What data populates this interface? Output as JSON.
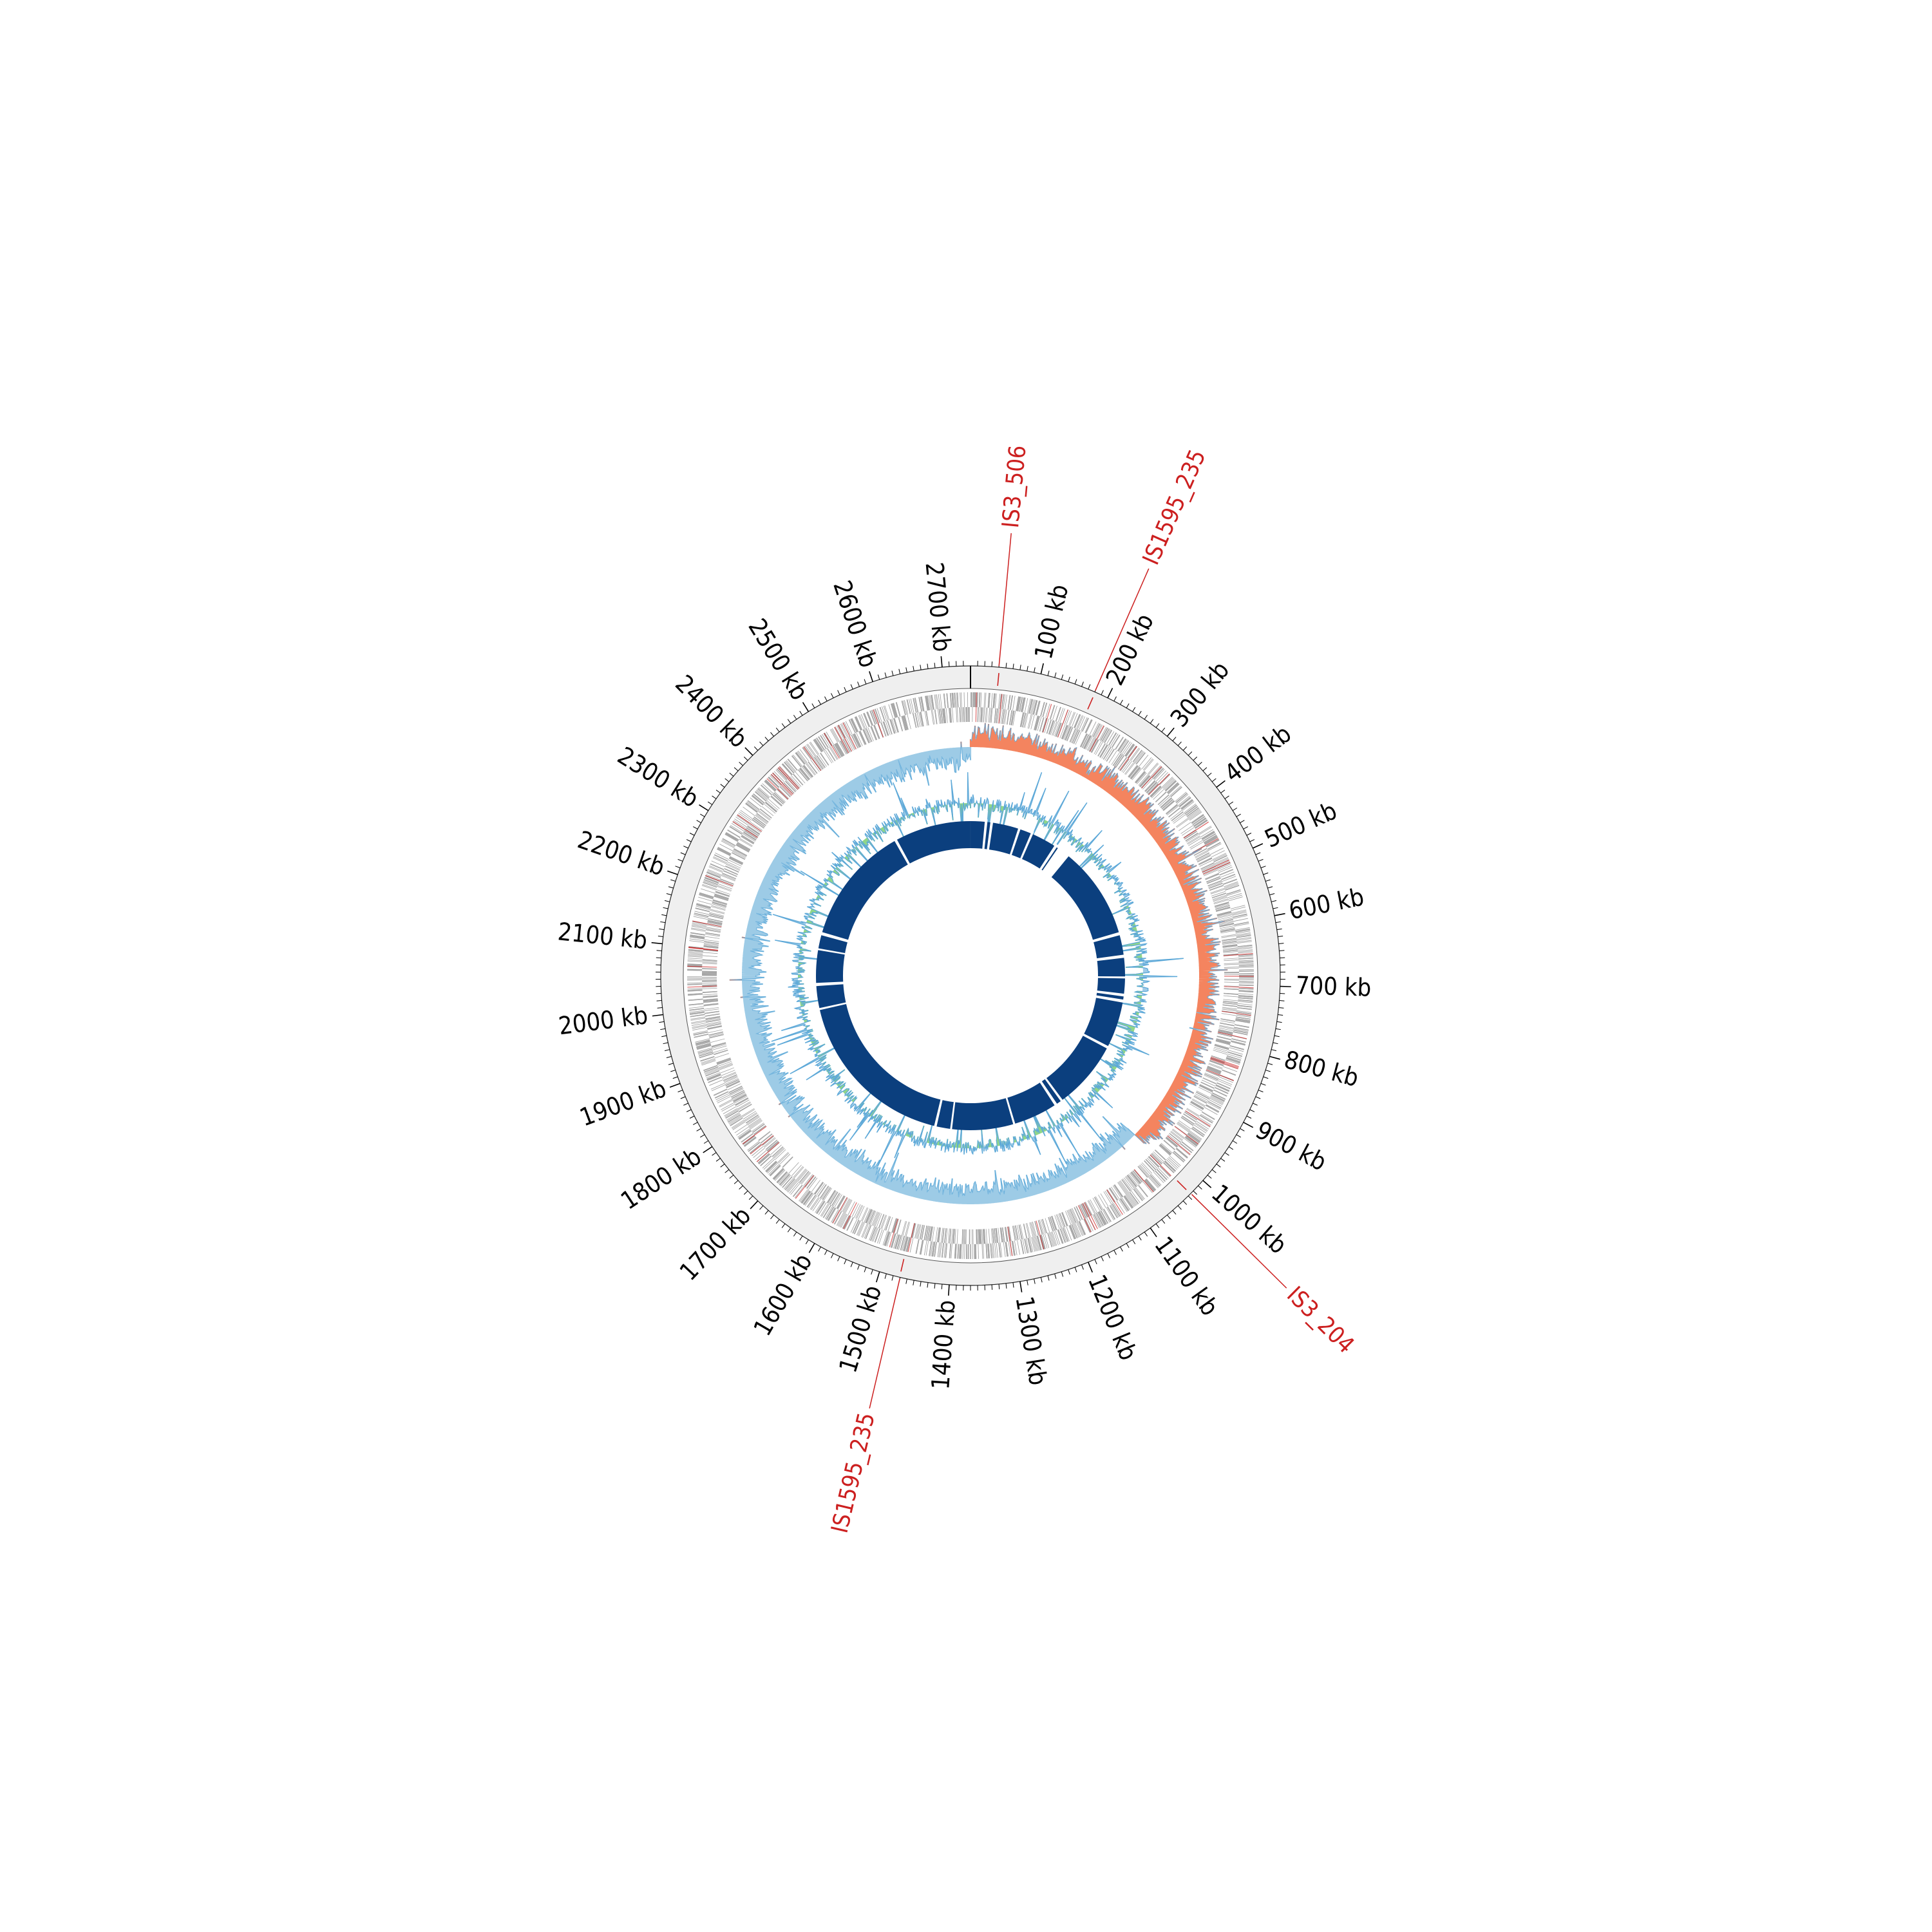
{
  "figure": {
    "genome_length_kb": 2740,
    "tick_unit": "kb",
    "major_tick_step_kb": 100,
    "minor_tick_step_kb": 10
  },
  "ticks": [
    {
      "kb": 100,
      "label": "100 kb"
    },
    {
      "kb": 200,
      "label": "200 kb"
    },
    {
      "kb": 300,
      "label": "300 kb"
    },
    {
      "kb": 400,
      "label": "400 kb"
    },
    {
      "kb": 500,
      "label": "500 kb"
    },
    {
      "kb": 600,
      "label": "600 kb"
    },
    {
      "kb": 700,
      "label": "700 kb"
    },
    {
      "kb": 800,
      "label": "800 kb"
    },
    {
      "kb": 900,
      "label": "900 kb"
    },
    {
      "kb": 1000,
      "label": "1000 kb"
    },
    {
      "kb": 1100,
      "label": "1100 kb"
    },
    {
      "kb": 1200,
      "label": "1200 kb"
    },
    {
      "kb": 1300,
      "label": "1300 kb"
    },
    {
      "kb": 1400,
      "label": "1400 kb"
    },
    {
      "kb": 1500,
      "label": "1500 kb"
    },
    {
      "kb": 1600,
      "label": "1600 kb"
    },
    {
      "kb": 1700,
      "label": "1700 kb"
    },
    {
      "kb": 1800,
      "label": "1800 kb"
    },
    {
      "kb": 1900,
      "label": "1900 kb"
    },
    {
      "kb": 2000,
      "label": "2000 kb"
    },
    {
      "kb": 2100,
      "label": "2100 kb"
    },
    {
      "kb": 2200,
      "label": "2200 kb"
    },
    {
      "kb": 2300,
      "label": "2300 kb"
    },
    {
      "kb": 2400,
      "label": "2400 kb"
    },
    {
      "kb": 2500,
      "label": "2500 kb"
    },
    {
      "kb": 2600,
      "label": "2600 kb"
    },
    {
      "kb": 2700,
      "label": "2700 kb"
    }
  ],
  "insertion_sequences": [
    {
      "name": "IS3_506",
      "kb": 40
    },
    {
      "name": "IS1595_235",
      "kb": 180
    },
    {
      "name": "IS3_204",
      "kb": 1025
    },
    {
      "name": "IS1595_235",
      "kb": 1470
    }
  ],
  "block_gaps_kb": [
    44,
    60,
    140,
    178,
    292,
    565,
    630,
    690,
    740,
    757,
    895,
    1095,
    1115,
    1245,
    1425,
    1470,
    1960,
    2030,
    2130,
    2175,
    2520
  ],
  "colors": {
    "ring_bg": "#efefef",
    "feature": "#9c9c9c",
    "is_element": "#cc1f1f",
    "skew_positive": "#f4845f",
    "skew_negative": "#9dcbe6",
    "skew_line": "#5ea9d8",
    "gc_positive": "#90d68a",
    "gc_negative": "#5ea9d8",
    "blocks": "#0b3f7e"
  }
}
